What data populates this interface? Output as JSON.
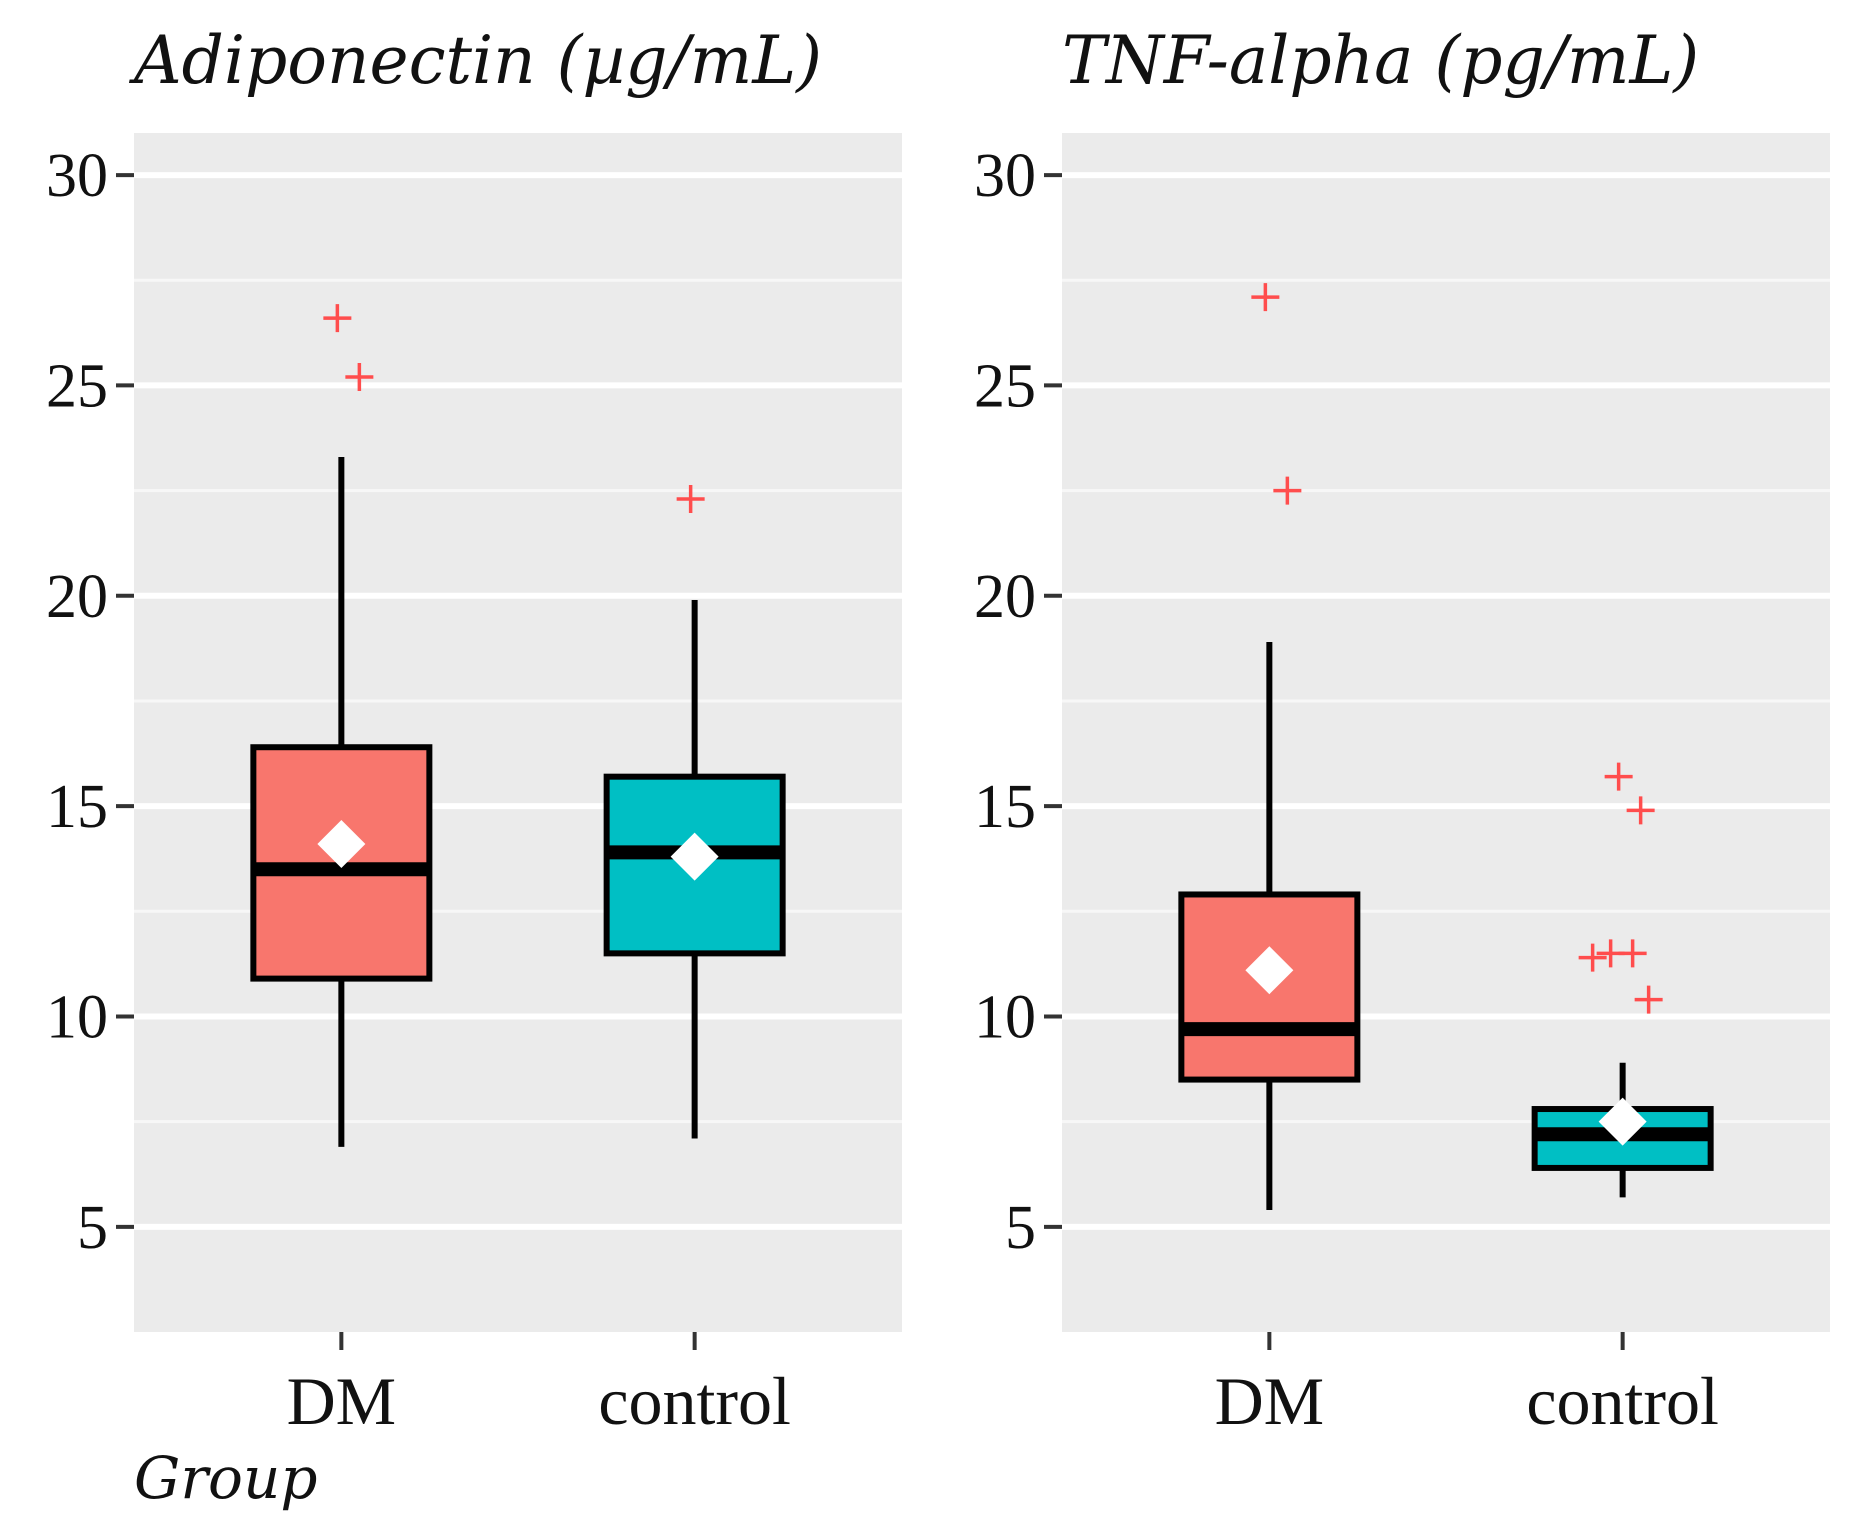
{
  "chart_data": [
    {
      "type": "box",
      "title": "Adiponectin (µg/mL)",
      "xlabel": "Group",
      "ylabel": "",
      "ylim": [
        2.5,
        31
      ],
      "y_ticks": [
        "5",
        "10",
        "15",
        "20",
        "25",
        "30"
      ],
      "grid": true,
      "categories": [
        "DM",
        "control"
      ],
      "box_colors": [
        "#f8766d",
        "#00bfc4"
      ],
      "mean_color": "#ffffff",
      "outlier_color": "#ff4d4d",
      "boxes": [
        {
          "category": "DM",
          "whisker_low": 6.9,
          "q1": 10.9,
          "median": 13.5,
          "q3": 16.4,
          "whisker_high": 23.3,
          "mean": 14.1,
          "outliers": [
            26.6,
            25.2
          ]
        },
        {
          "category": "control",
          "whisker_low": 7.1,
          "q1": 11.5,
          "median": 13.9,
          "q3": 15.7,
          "whisker_high": 19.9,
          "mean": 13.8,
          "outliers": [
            22.3
          ]
        }
      ]
    },
    {
      "type": "box",
      "title": "TNF-alpha (pg/mL)",
      "xlabel": "",
      "ylabel": "",
      "ylim": [
        2.5,
        31
      ],
      "y_ticks": [
        "5",
        "10",
        "15",
        "20",
        "25",
        "30"
      ],
      "grid": true,
      "categories": [
        "DM",
        "control"
      ],
      "box_colors": [
        "#f8766d",
        "#00bfc4"
      ],
      "mean_color": "#ffffff",
      "outlier_color": "#ff4d4d",
      "boxes": [
        {
          "category": "DM",
          "whisker_low": 5.4,
          "q1": 8.5,
          "median": 9.7,
          "q3": 12.9,
          "whisker_high": 18.9,
          "mean": 11.1,
          "outliers": [
            27.1,
            22.5
          ]
        },
        {
          "category": "control",
          "whisker_low": 5.7,
          "q1": 6.4,
          "median": 7.2,
          "q3": 7.8,
          "whisker_high": 8.9,
          "mean": 7.5,
          "outliers": [
            15.7,
            14.9,
            11.5,
            11.5,
            11.4,
            10.4
          ]
        }
      ]
    }
  ]
}
